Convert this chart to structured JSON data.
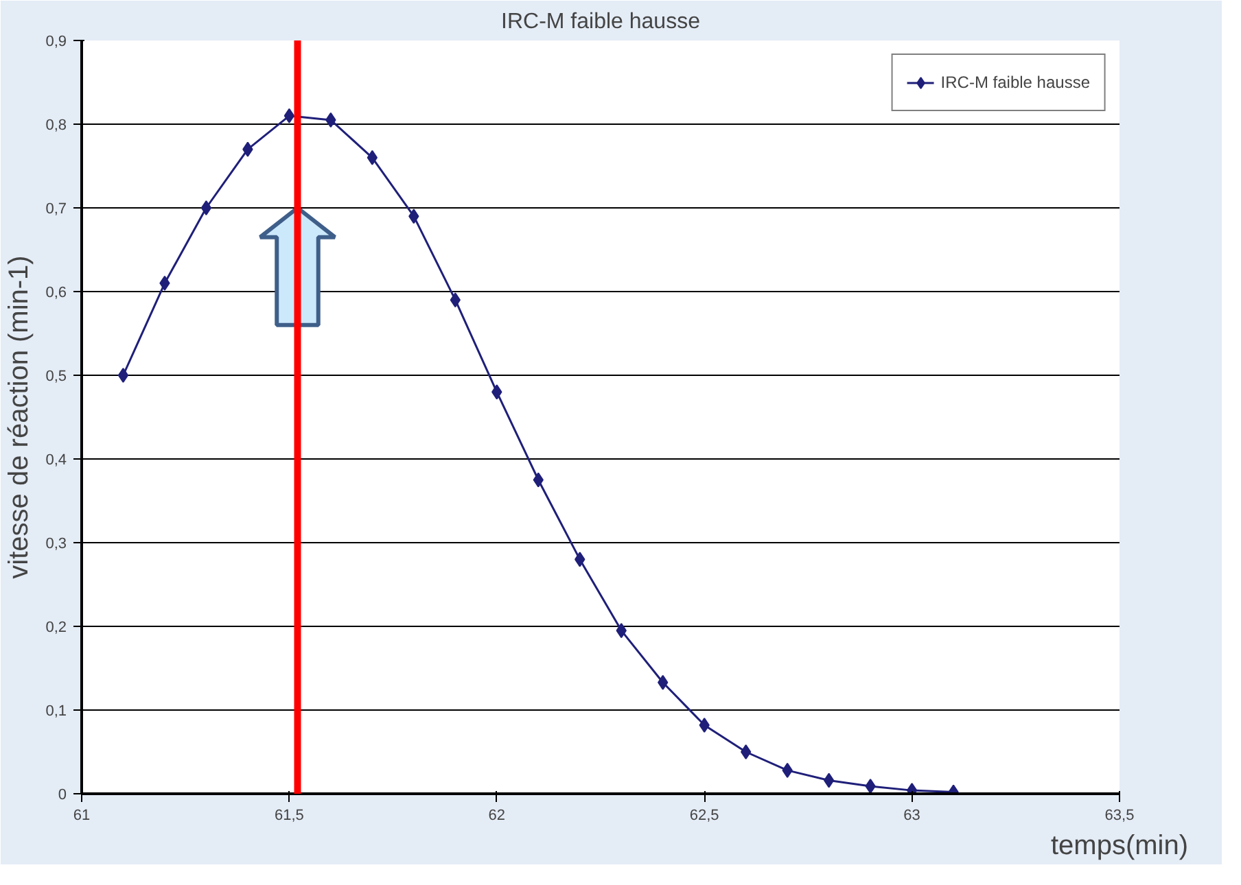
{
  "chart_data": {
    "type": "line",
    "title": "IRC-M faible hausse",
    "xlabel": "temps(min)",
    "ylabel": "vitesse de réaction (min-1)",
    "x": [
      61.1,
      61.2,
      61.3,
      61.4,
      61.5,
      61.6,
      61.7,
      61.8,
      61.9,
      62.0,
      62.1,
      62.2,
      62.3,
      62.4,
      62.5,
      62.6,
      62.7,
      62.8,
      62.9,
      63.0,
      63.1
    ],
    "series": [
      {
        "name": "IRC-M faible hausse",
        "color": "#1f1f7a",
        "values": [
          0.5,
          0.61,
          0.7,
          0.77,
          0.81,
          0.805,
          0.76,
          0.69,
          0.59,
          0.48,
          0.375,
          0.28,
          0.195,
          0.133,
          0.082,
          0.05,
          0.028,
          0.016,
          0.009,
          0.004,
          0.002
        ]
      }
    ],
    "xlim": [
      61,
      63.5
    ],
    "xticks": [
      61,
      {
        "value": 61.5,
        "label": "61,5"
      },
      62,
      {
        "value": 62.5,
        "label": "62,5"
      },
      63,
      {
        "value": 63.5,
        "label": "63,5"
      }
    ],
    "ylim": [
      0,
      0.9
    ],
    "yticks": [
      0,
      {
        "value": 0.1,
        "label": "0,1"
      },
      {
        "value": 0.2,
        "label": "0,2"
      },
      {
        "value": 0.3,
        "label": "0,3"
      },
      {
        "value": 0.4,
        "label": "0,4"
      },
      {
        "value": 0.5,
        "label": "0,5"
      },
      {
        "value": 0.6,
        "label": "0,6"
      },
      {
        "value": 0.7,
        "label": "0,7"
      },
      {
        "value": 0.8,
        "label": "0,8"
      },
      {
        "value": 0.9,
        "label": "0,9"
      }
    ],
    "ref_lines": [
      {
        "axis": "x",
        "value": 61.52,
        "color": "#ff0000"
      }
    ],
    "grid": "y",
    "legend": "top right",
    "marker": "diamond",
    "line_style": "solid"
  }
}
